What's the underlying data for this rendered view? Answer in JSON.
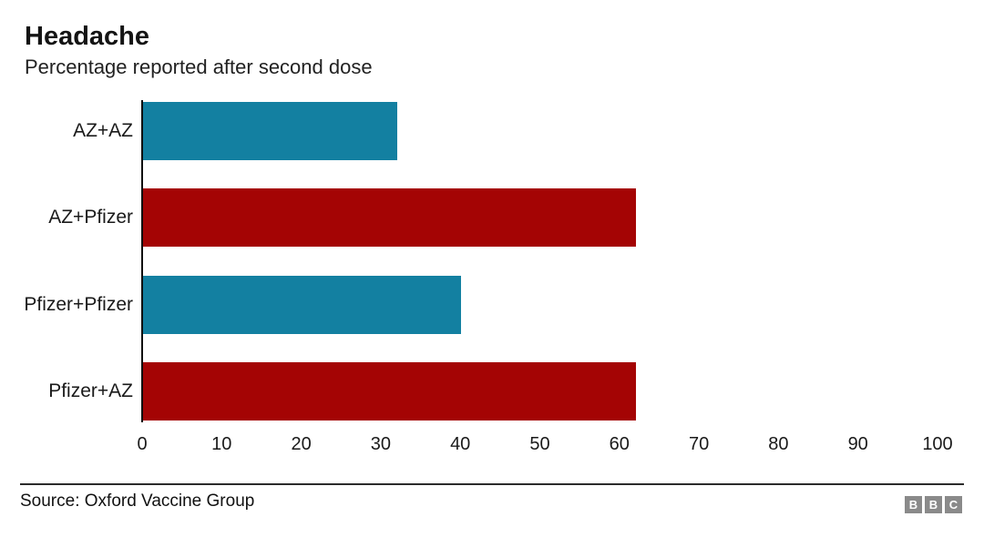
{
  "header": {
    "title": "Headache",
    "subtitle": "Percentage reported after second dose"
  },
  "chart_data": {
    "type": "bar",
    "orientation": "horizontal",
    "title": "Headache",
    "subtitle": "Percentage reported after second dose",
    "categories": [
      "AZ+AZ",
      "AZ+Pfizer",
      "Pfizer+Pfizer",
      "Pfizer+AZ"
    ],
    "values": [
      32,
      62,
      40,
      62
    ],
    "bar_colors": [
      "#1380a1",
      "#a40404",
      "#1380a1",
      "#a40404"
    ],
    "xlabel": "",
    "ylabel": "",
    "xlim": [
      0,
      100
    ],
    "xticks": [
      0,
      10,
      20,
      30,
      40,
      50,
      60,
      70,
      80,
      90,
      100
    ],
    "grid": false,
    "legend": false
  },
  "footer": {
    "source": "Source: Oxford Vaccine Group",
    "logo_letters": [
      "B",
      "B",
      "C"
    ]
  },
  "colors": {
    "teal": "#1380a1",
    "red": "#a40404",
    "axis": "#111111",
    "logo_gray": "#8a8a8a"
  }
}
